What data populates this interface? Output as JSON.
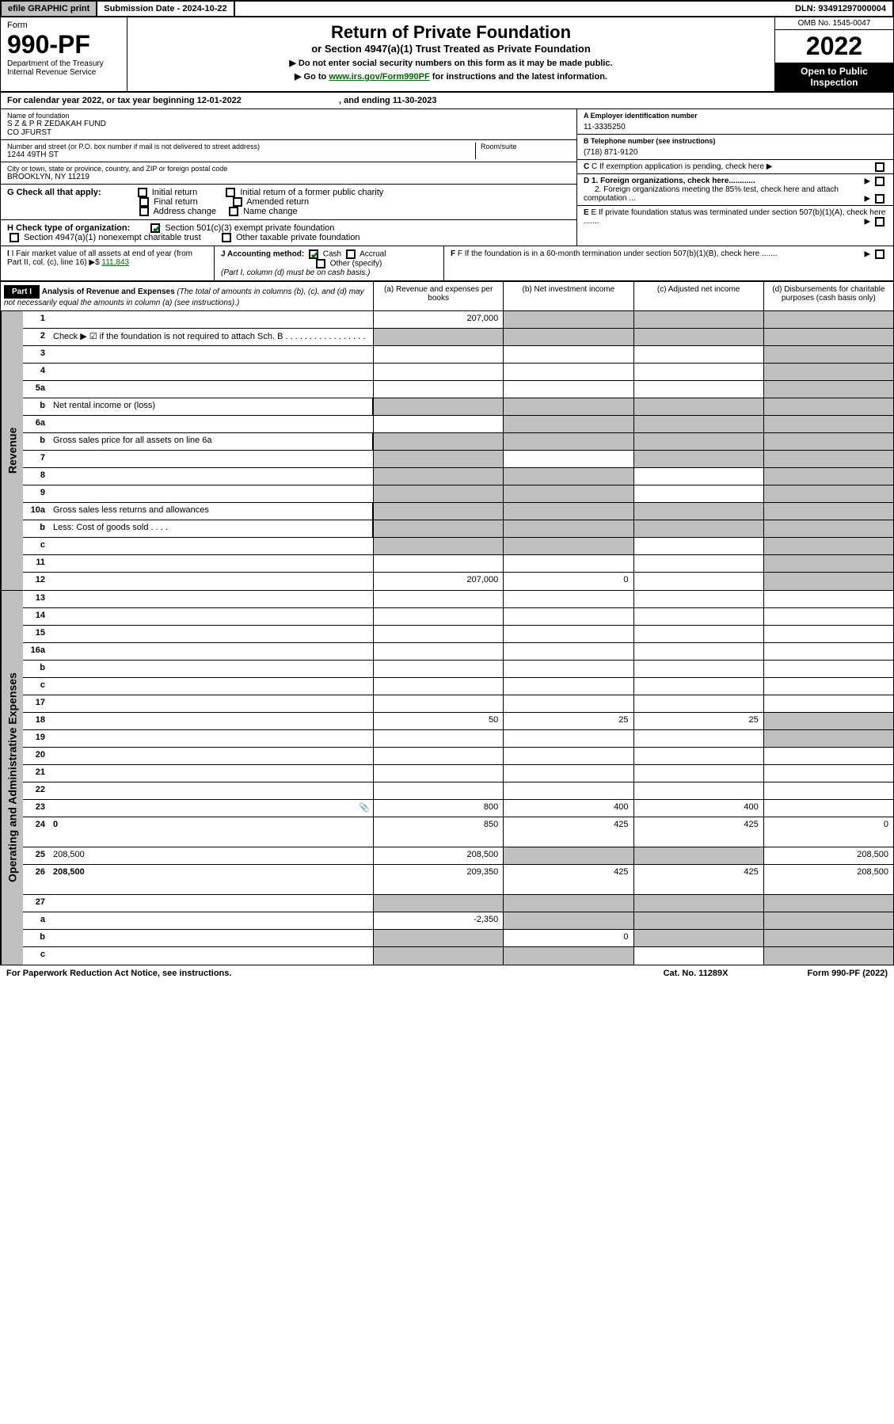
{
  "topbar": {
    "efile": "efile GRAPHIC print",
    "subdate_label": "Submission Date - ",
    "subdate": "2024-10-22",
    "dln_label": "DLN: ",
    "dln": "93491297000004"
  },
  "header": {
    "form_label": "Form",
    "form_num": "990-PF",
    "dept": "Department of the Treasury",
    "irs": "Internal Revenue Service",
    "title": "Return of Private Foundation",
    "subtitle": "or Section 4947(a)(1) Trust Treated as Private Foundation",
    "instr1": "▶ Do not enter social security numbers on this form as it may be made public.",
    "instr2_pre": "▶ Go to ",
    "instr2_link": "www.irs.gov/Form990PF",
    "instr2_post": " for instructions and the latest information.",
    "omb": "OMB No. 1545-0047",
    "year": "2022",
    "open": "Open to Public Inspection"
  },
  "calyear": {
    "text": "For calendar year 2022, or tax year beginning 12-01-2022",
    "ending": ", and ending 11-30-2023"
  },
  "info": {
    "name_label": "Name of foundation",
    "name": "S Z & P R ZEDAKAH FUND",
    "name2": "CO JFURST",
    "addr_label": "Number and street (or P.O. box number if mail is not delivered to street address)",
    "addr": "1244 49TH ST",
    "room_label": "Room/suite",
    "city_label": "City or town, state or province, country, and ZIP or foreign postal code",
    "city": "BROOKLYN, NY  11219",
    "a_label": "A Employer identification number",
    "a_val": "11-3335250",
    "b_label": "B Telephone number (see instructions)",
    "b_val": "(718) 871-9120",
    "c_label": "C If exemption application is pending, check here",
    "d1": "D 1. Foreign organizations, check here............",
    "d2": "2. Foreign organizations meeting the 85% test, check here and attach computation ...",
    "e_label": "E  If private foundation status was terminated under section 507(b)(1)(A), check here .......",
    "f_label": "F  If the foundation is in a 60-month termination under section 507(b)(1)(B), check here .......",
    "g_label": "G Check all that apply:",
    "g_initial": "Initial return",
    "g_initial_former": "Initial return of a former public charity",
    "g_final": "Final return",
    "g_amended": "Amended return",
    "g_addr": "Address change",
    "g_name": "Name change",
    "h_label": "H Check type of organization:",
    "h_501c3": "Section 501(c)(3) exempt private foundation",
    "h_4947": "Section 4947(a)(1) nonexempt charitable trust",
    "h_other": "Other taxable private foundation",
    "i_label": "I Fair market value of all assets at end of year (from Part II, col. (c), line 16)",
    "i_val": "111,843",
    "j_label": "J Accounting method:",
    "j_cash": "Cash",
    "j_accrual": "Accrual",
    "j_other": "Other (specify)",
    "j_note": "(Part I, column (d) must be on cash basis.)"
  },
  "part1": {
    "label": "Part I",
    "title": "Analysis of Revenue and Expenses",
    "note": "(The total of amounts in columns (b), (c), and (d) may not necessarily equal the amounts in column (a) (see instructions).)",
    "col_a": "(a)   Revenue and expenses per books",
    "col_b": "(b)   Net investment income",
    "col_c": "(c)   Adjusted net income",
    "col_d": "(d)   Disbursements for charitable purposes (cash basis only)"
  },
  "sides": {
    "revenue": "Revenue",
    "expenses": "Operating and Administrative Expenses"
  },
  "rows": [
    {
      "n": "1",
      "d": "",
      "a": "207,000",
      "b": "",
      "c": "",
      "sb": true,
      "sc": true,
      "sd": true
    },
    {
      "n": "2",
      "d": "Check ▶ ☑ if the foundation is not required to attach Sch. B   .  .  .  .  .  .  .  .  .  .  .  .  .  .  .  .  .",
      "nocols": true
    },
    {
      "n": "3",
      "d": "",
      "a": "",
      "b": "",
      "c": "",
      "sd": true
    },
    {
      "n": "4",
      "d": "",
      "a": "",
      "b": "",
      "c": "",
      "sd": true
    },
    {
      "n": "5a",
      "d": "",
      "a": "",
      "b": "",
      "c": "",
      "sd": true
    },
    {
      "n": "b",
      "d": "Net rental income or (loss)",
      "nocols": true,
      "short": true
    },
    {
      "n": "6a",
      "d": "",
      "a": "",
      "b": "",
      "c": "",
      "sb": true,
      "sc": true,
      "sd": true
    },
    {
      "n": "b",
      "d": "Gross sales price for all assets on line 6a",
      "nocols": true,
      "short": true
    },
    {
      "n": "7",
      "d": "",
      "a": "",
      "b": "",
      "c": "",
      "sa": true,
      "sc": true,
      "sd": true
    },
    {
      "n": "8",
      "d": "",
      "a": "",
      "b": "",
      "c": "",
      "sa": true,
      "sb": true,
      "sd": true
    },
    {
      "n": "9",
      "d": "",
      "a": "",
      "b": "",
      "c": "",
      "sa": true,
      "sb": true,
      "sd": true
    },
    {
      "n": "10a",
      "d": "Gross sales less returns and allowances",
      "nocols": true,
      "short": true
    },
    {
      "n": "b",
      "d": "Less: Cost of goods sold    .   .   .   .",
      "nocols": true,
      "short": true
    },
    {
      "n": "c",
      "d": "",
      "a": "",
      "b": "",
      "c": "",
      "sa": true,
      "sb": true,
      "sd": true
    },
    {
      "n": "11",
      "d": "",
      "a": "",
      "b": "",
      "c": "",
      "sd": true
    },
    {
      "n": "12",
      "d": "",
      "bold": true,
      "a": "207,000",
      "b": "0",
      "c": "",
      "sd": true
    }
  ],
  "exp_rows": [
    {
      "n": "13",
      "d": "",
      "a": "",
      "b": "",
      "c": ""
    },
    {
      "n": "14",
      "d": "",
      "a": "",
      "b": "",
      "c": ""
    },
    {
      "n": "15",
      "d": "",
      "a": "",
      "b": "",
      "c": ""
    },
    {
      "n": "16a",
      "d": "",
      "a": "",
      "b": "",
      "c": ""
    },
    {
      "n": "b",
      "d": "",
      "a": "",
      "b": "",
      "c": ""
    },
    {
      "n": "c",
      "d": "",
      "a": "",
      "b": "",
      "c": ""
    },
    {
      "n": "17",
      "d": "",
      "a": "",
      "b": "",
      "c": ""
    },
    {
      "n": "18",
      "d": "",
      "a": "50",
      "b": "25",
      "c": "25",
      "sd": true
    },
    {
      "n": "19",
      "d": "",
      "a": "",
      "b": "",
      "c": "",
      "sd": true
    },
    {
      "n": "20",
      "d": "",
      "a": "",
      "b": "",
      "c": ""
    },
    {
      "n": "21",
      "d": "",
      "a": "",
      "b": "",
      "c": ""
    },
    {
      "n": "22",
      "d": "",
      "a": "",
      "b": "",
      "c": ""
    },
    {
      "n": "23",
      "d": "",
      "a": "800",
      "b": "400",
      "c": "400",
      "icon": true
    },
    {
      "n": "24",
      "d": "0",
      "bold": true,
      "a": "850",
      "b": "425",
      "c": "425",
      "tall": true
    },
    {
      "n": "25",
      "d": "208,500",
      "a": "208,500",
      "b": "",
      "c": "",
      "sb": true,
      "sc": true
    },
    {
      "n": "26",
      "d": "208,500",
      "bold": true,
      "a": "209,350",
      "b": "425",
      "c": "425",
      "tall": true
    },
    {
      "n": "27",
      "d": "",
      "a": "",
      "b": "",
      "c": "",
      "sa": true,
      "sb": true,
      "sc": true,
      "sd": true
    },
    {
      "n": "a",
      "d": "",
      "bold": true,
      "a": "-2,350",
      "b": "",
      "c": "",
      "sb": true,
      "sc": true,
      "sd": true
    },
    {
      "n": "b",
      "d": "",
      "bold": true,
      "a": "",
      "b": "0",
      "c": "",
      "sa": true,
      "sc": true,
      "sd": true
    },
    {
      "n": "c",
      "d": "",
      "bold": true,
      "a": "",
      "b": "",
      "c": "",
      "sa": true,
      "sb": true,
      "sd": true
    }
  ],
  "footer": {
    "left": "For Paperwork Reduction Act Notice, see instructions.",
    "mid": "Cat. No. 11289X",
    "right": "Form 990-PF (2022)"
  },
  "colors": {
    "shaded": "#bfbfbf",
    "link": "#006600"
  }
}
